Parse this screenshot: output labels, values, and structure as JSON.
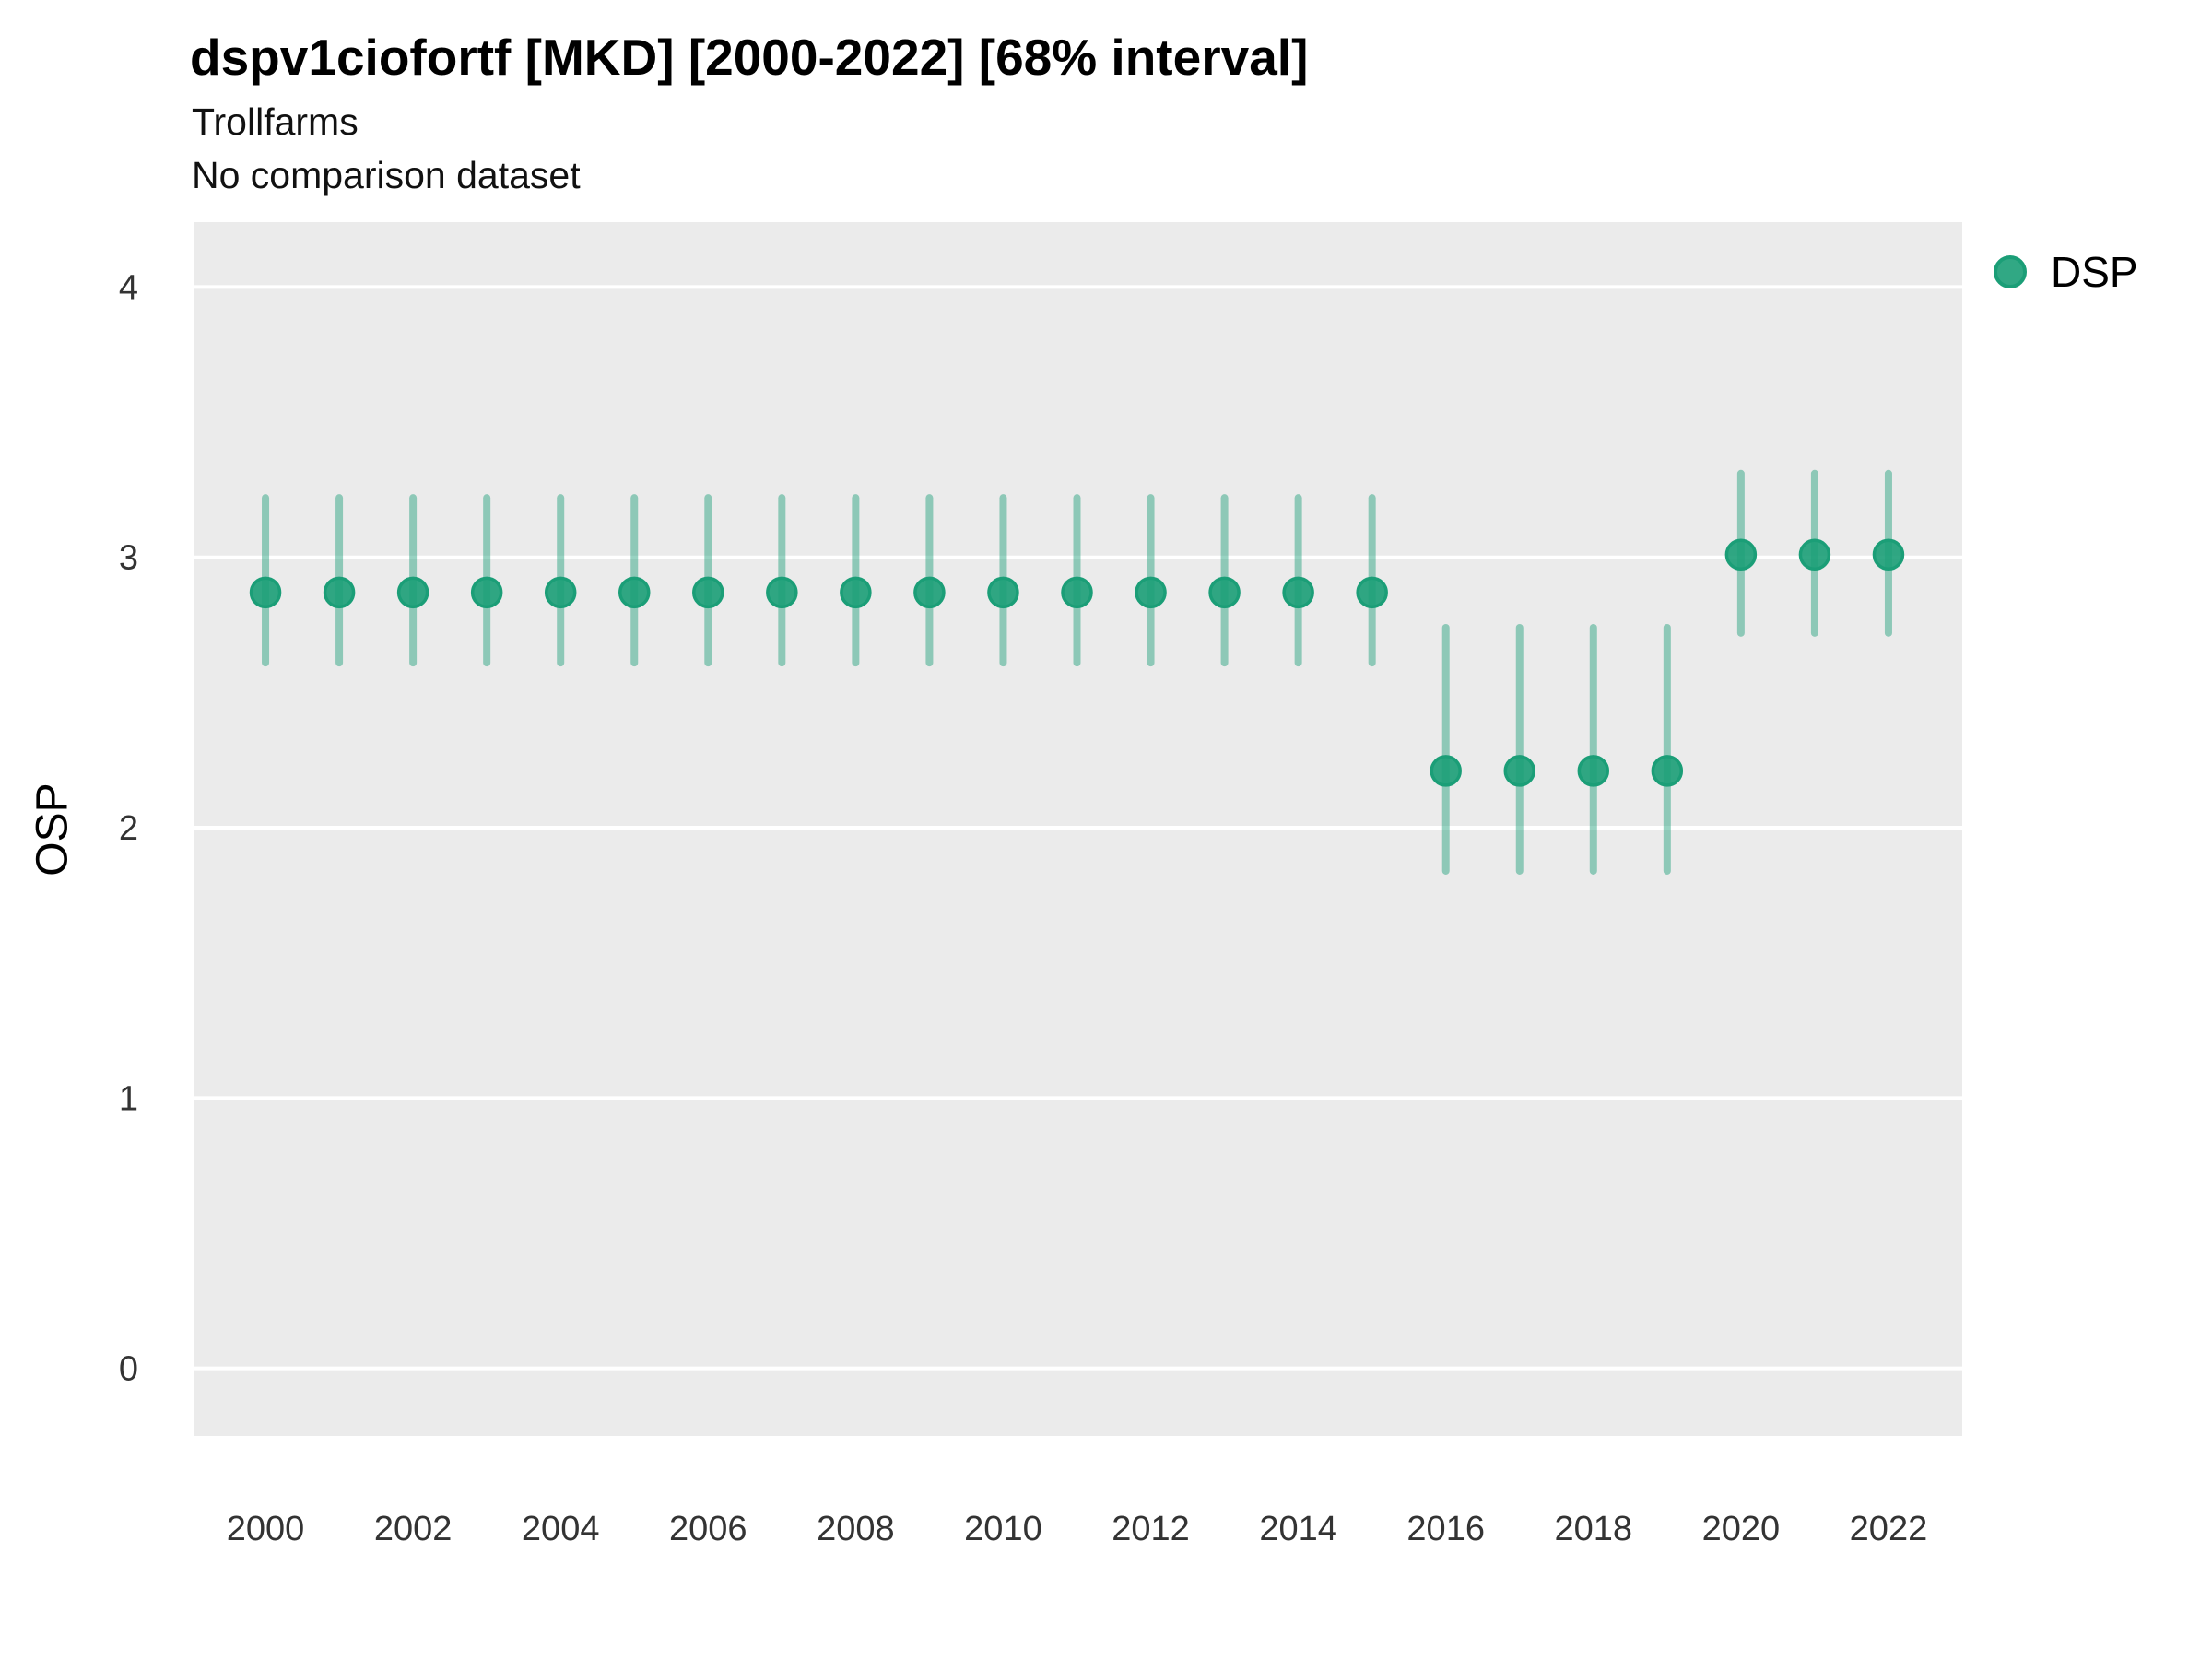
{
  "header": {
    "title": "dspv1ciofortf [MKD] [2000-2022] [68% interval]",
    "subtitle": "Trollfarms",
    "comparison_note": "No comparison dataset"
  },
  "legend": {
    "label": "DSP"
  },
  "chart_data": {
    "type": "scatter",
    "title": "dspv1ciofortf [MKD] [2000-2022] [68% interval]",
    "subtitle": "Trollfarms",
    "note": "No comparison dataset",
    "xlabel": "",
    "ylabel": "OSP",
    "interval": "68%",
    "grid": "horizontal-major-only",
    "legend_position": "right",
    "x_ticks": [
      2000,
      2002,
      2004,
      2006,
      2008,
      2010,
      2012,
      2014,
      2016,
      2018,
      2020,
      2022
    ],
    "y_ticks": [
      0,
      1,
      2,
      3,
      4
    ],
    "xlim": [
      1999.025,
      2023.0
    ],
    "ylim": [
      -0.25,
      4.24
    ],
    "colors": {
      "point_fill": "rgba(27,158,119,0.9)",
      "point_stroke": "#1B9E77",
      "interval": "rgba(27,158,119,0.45)",
      "panel": "#EBEBEB",
      "grid": "#FFFFFF",
      "tick_text": "#333333"
    },
    "series": [
      {
        "name": "DSP",
        "points": [
          {
            "year": 2000,
            "value": 2.87,
            "lo": 2.61,
            "hi": 3.22
          },
          {
            "year": 2001,
            "value": 2.87,
            "lo": 2.61,
            "hi": 3.22
          },
          {
            "year": 2002,
            "value": 2.87,
            "lo": 2.61,
            "hi": 3.22
          },
          {
            "year": 2003,
            "value": 2.87,
            "lo": 2.61,
            "hi": 3.22
          },
          {
            "year": 2004,
            "value": 2.87,
            "lo": 2.61,
            "hi": 3.22
          },
          {
            "year": 2005,
            "value": 2.87,
            "lo": 2.61,
            "hi": 3.22
          },
          {
            "year": 2006,
            "value": 2.87,
            "lo": 2.61,
            "hi": 3.22
          },
          {
            "year": 2007,
            "value": 2.87,
            "lo": 2.61,
            "hi": 3.22
          },
          {
            "year": 2008,
            "value": 2.87,
            "lo": 2.61,
            "hi": 3.22
          },
          {
            "year": 2009,
            "value": 2.87,
            "lo": 2.61,
            "hi": 3.22
          },
          {
            "year": 2010,
            "value": 2.87,
            "lo": 2.61,
            "hi": 3.22
          },
          {
            "year": 2011,
            "value": 2.87,
            "lo": 2.61,
            "hi": 3.22
          },
          {
            "year": 2012,
            "value": 2.87,
            "lo": 2.61,
            "hi": 3.22
          },
          {
            "year": 2013,
            "value": 2.87,
            "lo": 2.61,
            "hi": 3.22
          },
          {
            "year": 2014,
            "value": 2.87,
            "lo": 2.61,
            "hi": 3.22
          },
          {
            "year": 2015,
            "value": 2.87,
            "lo": 2.61,
            "hi": 3.22
          },
          {
            "year": 2016,
            "value": 2.21,
            "lo": 1.84,
            "hi": 2.74
          },
          {
            "year": 2017,
            "value": 2.21,
            "lo": 1.84,
            "hi": 2.74
          },
          {
            "year": 2018,
            "value": 2.21,
            "lo": 1.84,
            "hi": 2.74
          },
          {
            "year": 2019,
            "value": 2.21,
            "lo": 1.84,
            "hi": 2.74
          },
          {
            "year": 2020,
            "value": 3.01,
            "lo": 2.72,
            "hi": 3.31
          },
          {
            "year": 2021,
            "value": 3.01,
            "lo": 2.72,
            "hi": 3.31
          },
          {
            "year": 2022,
            "value": 3.01,
            "lo": 2.72,
            "hi": 3.31
          }
        ]
      }
    ]
  }
}
